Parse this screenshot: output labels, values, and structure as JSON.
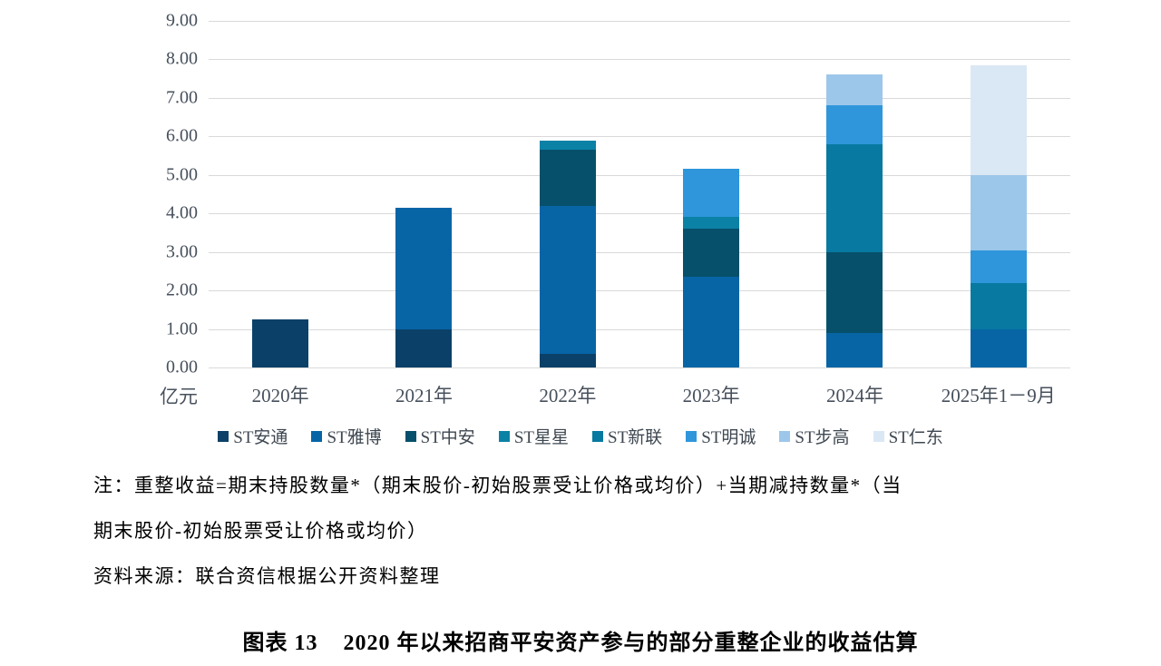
{
  "chart_data": {
    "type": "bar",
    "stacked": true,
    "categories": [
      "2020年",
      "2021年",
      "2022年",
      "2023年",
      "2024年",
      "2025年1－9月"
    ],
    "series": [
      {
        "name": "ST安通",
        "color": "#0B4168",
        "values": [
          1.25,
          1.0,
          0.35,
          0,
          0,
          0
        ]
      },
      {
        "name": "ST雅博",
        "color": "#0765A6",
        "values": [
          0,
          3.15,
          3.85,
          2.35,
          0.9,
          1.0
        ]
      },
      {
        "name": "ST中安",
        "color": "#06506B",
        "values": [
          0,
          0,
          1.45,
          1.25,
          2.1,
          0
        ]
      },
      {
        "name": "ST星星",
        "color": "#0C81A6",
        "values": [
          0,
          0,
          0.25,
          0.3,
          0,
          0
        ]
      },
      {
        "name": "ST新联",
        "color": "#0879A1",
        "values": [
          0,
          0,
          0,
          0,
          2.8,
          1.2
        ]
      },
      {
        "name": "ST明诚",
        "color": "#2F96DC",
        "values": [
          0,
          0,
          0,
          1.25,
          1.0,
          0.85
        ]
      },
      {
        "name": "ST步高",
        "color": "#9DC7EA",
        "values": [
          0,
          0,
          0,
          0,
          0.8,
          1.95
        ]
      },
      {
        "name": "ST仁东",
        "color": "#DAE8F5",
        "values": [
          0,
          0,
          0,
          0,
          0,
          2.85
        ]
      }
    ],
    "totals": [
      1.25,
      4.15,
      5.9,
      5.15,
      7.6,
      7.85
    ],
    "ylabel": "亿元",
    "ylim": [
      0,
      9
    ],
    "ytick_step": 1,
    "y_tick_labels": [
      "0.00",
      "1.00",
      "2.00",
      "3.00",
      "4.00",
      "5.00",
      "6.00",
      "7.00",
      "8.00",
      "9.00"
    ],
    "grid": true,
    "grid_color": "#d9d9d9",
    "legend_position": "bottom"
  },
  "notes": {
    "line1": "注：重整收益=期末持股数量*（期末股价-初始股票受让价格或均价）+当期减持数量*（当",
    "line2": "期末股价-初始股票受让价格或均价）",
    "source": "资料来源：联合资信根据公开资料整理"
  },
  "caption": {
    "label": "图表 13",
    "text": "2020 年以来招商平安资产参与的部分重整企业的收益估算"
  }
}
